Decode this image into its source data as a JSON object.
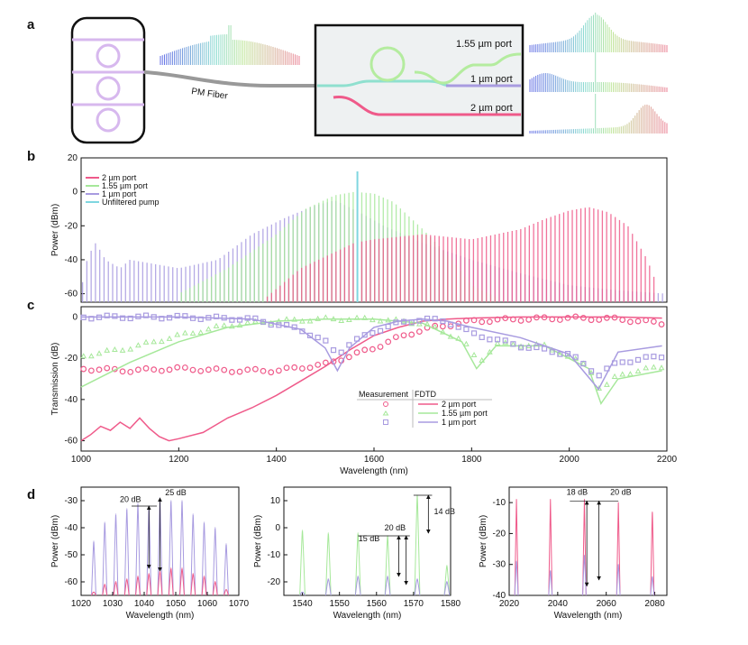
{
  "colors": {
    "pink": "#ef5a8a",
    "green": "#a6e89a",
    "purple": "#a89be0",
    "cyan": "#7fd6e0",
    "gray": "#999999"
  },
  "panel_a": {
    "label": "a",
    "fiber_label": "PM Fiber",
    "ports": [
      "1.55 µm port",
      "1 µm port",
      "2 µm port"
    ]
  },
  "chart_data": [
    {
      "panel": "b",
      "type": "line",
      "xlabel": "",
      "ylabel": "Power (dBm)",
      "xlim": [
        1000,
        2200
      ],
      "ylim": [
        -65,
        20
      ],
      "yticks": [
        -60,
        -40,
        -20,
        0,
        20
      ],
      "legend": [
        "2 µm port",
        "1.55 µm port",
        "1 µm port",
        "Unfiltered pump"
      ],
      "series": [
        {
          "name": "1 µm port",
          "comb_envelope": [
            [
              1000,
              -58
            ],
            [
              1010,
              -42
            ],
            [
              1020,
              -35
            ],
            [
              1030,
              -30
            ],
            [
              1050,
              -40
            ],
            [
              1080,
              -45
            ],
            [
              1100,
              -40
            ],
            [
              1200,
              -45
            ],
            [
              1280,
              -40
            ],
            [
              1350,
              -25
            ],
            [
              1420,
              -15
            ],
            [
              1480,
              -8
            ],
            [
              1520,
              -5
            ],
            [
              1570,
              -12
            ],
            [
              1620,
              -20
            ],
            [
              1700,
              -30
            ],
            [
              1800,
              -40
            ],
            [
              1900,
              -48
            ],
            [
              2000,
              -55
            ],
            [
              2100,
              -58
            ],
            [
              2200,
              -60
            ]
          ]
        },
        {
          "name": "1.55 µm port",
          "comb_envelope": [
            [
              1200,
              -60
            ],
            [
              1300,
              -45
            ],
            [
              1400,
              -25
            ],
            [
              1460,
              -10
            ],
            [
              1520,
              -2
            ],
            [
              1560,
              0
            ],
            [
              1600,
              -1
            ],
            [
              1640,
              -6
            ],
            [
              1700,
              -22
            ],
            [
              1760,
              -40
            ],
            [
              1800,
              -55
            ],
            [
              1850,
              -62
            ]
          ]
        },
        {
          "name": "2 µm port",
          "comb_envelope": [
            [
              1380,
              -62
            ],
            [
              1450,
              -45
            ],
            [
              1560,
              -30
            ],
            [
              1600,
              -28
            ],
            [
              1700,
              -25
            ],
            [
              1800,
              -28
            ],
            [
              1900,
              -22
            ],
            [
              1950,
              -16
            ],
            [
              2000,
              -11
            ],
            [
              2040,
              -9
            ],
            [
              2080,
              -12
            ],
            [
              2120,
              -20
            ],
            [
              2160,
              -40
            ],
            [
              2180,
              -55
            ]
          ]
        },
        {
          "name": "Unfiltered pump",
          "peak": [
            1566,
            12
          ]
        }
      ]
    },
    {
      "panel": "c",
      "type": "line",
      "xlabel": "Wavelength (nm)",
      "ylabel": "Transmission (dB)",
      "xlim": [
        1000,
        2200
      ],
      "ylim": [
        -65,
        5
      ],
      "xticks": [
        1000,
        1200,
        1400,
        1600,
        1800,
        2000,
        2200
      ],
      "yticks": [
        -60,
        -40,
        -20,
        0
      ],
      "legend_headers": [
        "Measurement",
        "FDTD"
      ],
      "legend": [
        "2 µm port",
        "1.55 µm port",
        "1 µm port"
      ],
      "series": [
        {
          "name": "2 µm port FDTD",
          "x": [
            1000,
            1020,
            1040,
            1060,
            1080,
            1100,
            1120,
            1140,
            1160,
            1180,
            1200,
            1250,
            1300,
            1350,
            1400,
            1450,
            1500,
            1550,
            1600,
            1650,
            1700,
            1750,
            1800,
            1900,
            2000,
            2100,
            2190
          ],
          "y": [
            -60,
            -57,
            -53,
            -55,
            -51,
            -54,
            -49,
            -54,
            -58,
            -60,
            -59,
            -56,
            -49,
            -44,
            -38,
            -31,
            -24,
            -16,
            -9,
            -5,
            -2,
            -1,
            -0.5,
            0,
            0,
            0,
            -0.5
          ]
        },
        {
          "name": "2 µm port measured",
          "x": [
            1000,
            1100,
            1200,
            1300,
            1400,
            1500,
            1550,
            1600,
            1650,
            1700,
            1750,
            1800,
            1900,
            2000,
            2100,
            2190
          ],
          "y": [
            -25,
            -26,
            -25,
            -26,
            -26,
            -23,
            -19,
            -15,
            -10,
            -6,
            -4,
            -2,
            -1,
            -0.5,
            -1,
            -3
          ]
        },
        {
          "name": "1.55 µm port FDTD",
          "x": [
            1000,
            1100,
            1200,
            1300,
            1400,
            1500,
            1600,
            1700,
            1780,
            1810,
            1850,
            1950,
            2040,
            2065,
            2100,
            2190
          ],
          "y": [
            -34,
            -22,
            -12,
            -5,
            -2,
            -1,
            -1,
            -3,
            -12,
            -25,
            -14,
            -14,
            -25,
            -42,
            -30,
            -26
          ]
        },
        {
          "name": "1.55 µm port measured",
          "x": [
            1000,
            1100,
            1200,
            1300,
            1400,
            1500,
            1600,
            1700,
            1780,
            1815,
            1850,
            1950,
            2040,
            2065,
            2100,
            2190
          ],
          "y": [
            -19,
            -15,
            -9,
            -4,
            -2,
            -1,
            -1,
            -3,
            -11,
            -22,
            -13,
            -14,
            -24,
            -36,
            -28,
            -24
          ]
        },
        {
          "name": "1 µm port FDTD",
          "x": [
            1000,
            1200,
            1350,
            1450,
            1500,
            1525,
            1550,
            1600,
            1650,
            1700,
            1750,
            1800,
            1900,
            2000,
            2060,
            2100,
            2190
          ],
          "y": [
            0,
            0,
            -1,
            -6,
            -15,
            -26,
            -15,
            -5,
            -2,
            -1,
            -2,
            -5,
            -10,
            -18,
            -35,
            -17,
            -14
          ]
        },
        {
          "name": "1 µm port measured",
          "x": [
            1000,
            1200,
            1350,
            1450,
            1500,
            1525,
            1550,
            1600,
            1650,
            1700,
            1750,
            1800,
            1900,
            2000,
            2060,
            2100,
            2190
          ],
          "y": [
            0,
            0,
            -1,
            -6,
            -12,
            -18,
            -13,
            -7,
            -3,
            -1,
            -2,
            -8,
            -14,
            -18,
            -28,
            -22,
            -19
          ]
        }
      ]
    },
    {
      "panel": "d1",
      "type": "bar",
      "xlabel": "Wavelength (nm)",
      "ylabel": "Power (dBm)",
      "xlim": [
        1020,
        1070
      ],
      "ylim": [
        -65,
        -25
      ],
      "xticks": [
        1020,
        1030,
        1040,
        1050,
        1060,
        1070
      ],
      "yticks": [
        -60,
        -50,
        -40,
        -30
      ],
      "annotations": [
        "20 dB",
        "25 dB"
      ],
      "series": [
        {
          "name": "1 µm port",
          "x": [
            1024,
            1027.5,
            1031,
            1034.5,
            1038,
            1041.5,
            1045,
            1048.5,
            1052,
            1055.5,
            1059,
            1062.5,
            1066
          ],
          "values": [
            -45,
            -38,
            -35,
            -33,
            -31,
            -32,
            -29,
            -30,
            -30,
            -35,
            -38,
            -40,
            -46
          ]
        },
        {
          "name": "2 µm port",
          "x": [
            1024,
            1027.5,
            1031,
            1034.5,
            1038,
            1041.5,
            1045,
            1048.5,
            1052,
            1055.5,
            1059,
            1062.5,
            1066
          ],
          "values": [
            -64,
            -61,
            -60,
            -59,
            -58,
            -57,
            -56,
            -55,
            -55,
            -57,
            -58,
            -60,
            -63
          ]
        }
      ]
    },
    {
      "panel": "d2",
      "type": "bar",
      "xlabel": "Wavelength (nm)",
      "ylabel": "Power (dBm)",
      "xlim": [
        1535,
        1580
      ],
      "ylim": [
        -25,
        15
      ],
      "xticks": [
        1540,
        1550,
        1560,
        1570,
        1580
      ],
      "yticks": [
        -20,
        -10,
        0,
        10
      ],
      "annotations": [
        "20 dB",
        "15 dB",
        "14 dB"
      ],
      "series": [
        {
          "name": "1.55 µm port",
          "x": [
            1540,
            1547,
            1555,
            1563,
            1571,
            1579
          ],
          "values": [
            -1,
            -2,
            -2,
            -3,
            12,
            -14
          ]
        },
        {
          "name": "1 µm port",
          "x": [
            1540,
            1547,
            1555,
            1563,
            1571,
            1579
          ],
          "values": [
            -24,
            -19,
            -18,
            -18,
            -19,
            -20
          ]
        }
      ]
    },
    {
      "panel": "d3",
      "type": "bar",
      "xlabel": "Wavelength (nm)",
      "ylabel": "Power (dBm)",
      "xlim": [
        2020,
        2085
      ],
      "ylim": [
        -40,
        -5
      ],
      "xticks": [
        2020,
        2040,
        2060,
        2080
      ],
      "yticks": [
        -40,
        -30,
        -20,
        -10
      ],
      "annotations": [
        "18 dB",
        "20 dB"
      ],
      "series": [
        {
          "name": "2 µm port",
          "x": [
            2023,
            2037,
            2051,
            2065,
            2079
          ],
          "values": [
            -9,
            -9,
            -9,
            -10,
            -13
          ]
        },
        {
          "name": "1.55 µm port",
          "x": [
            2023,
            2037,
            2051,
            2065,
            2079
          ],
          "values": [
            -29,
            -32,
            -27,
            -30,
            -34
          ]
        }
      ]
    }
  ],
  "labels": {
    "b": "b",
    "c": "c",
    "d": "d"
  }
}
